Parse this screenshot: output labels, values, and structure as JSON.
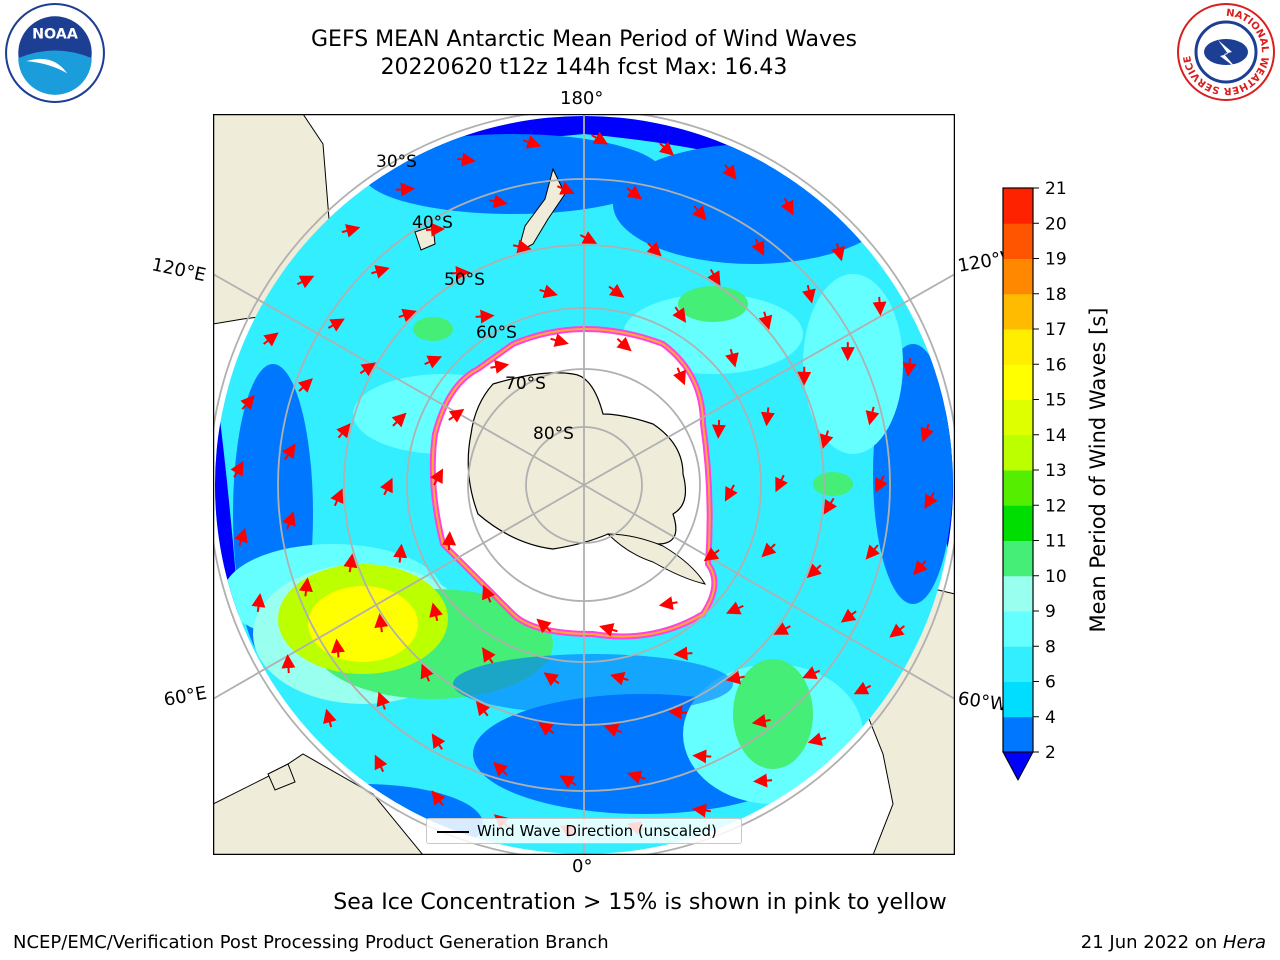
{
  "header": {
    "title_line1": "GEFS MEAN Antarctic Mean Period of Wind Waves",
    "title_line2": "20220620 t12z 144h fcst   Max: 16.43"
  },
  "logos": {
    "left": {
      "icon": "noaa-logo",
      "text": "NOAA"
    },
    "right": {
      "icon": "nws-logo",
      "text": "NATIONAL WEATHER SERVICE"
    }
  },
  "map": {
    "projection": "south-polar-stereographic",
    "longitude_labels": {
      "top": "180°",
      "bottom": "0°",
      "upper_left": "120°E",
      "upper_right": "120°W",
      "lower_left": "60°E",
      "lower_right": "60°W"
    },
    "latitude_labels": [
      "30°S",
      "40°S",
      "50°S",
      "60°S",
      "70°S",
      "80°S"
    ],
    "legend": "Wind Wave Direction (unscaled)",
    "colors": {
      "land": "#efecd9",
      "ice_free_ocean": "#ffffff",
      "sea_ice_edge": [
        "#ff44dd",
        "#ffaa33"
      ],
      "arrows": "#ff0000",
      "gridlines": "#b0b0b0"
    }
  },
  "colorbar": {
    "label": "Mean Period of Wind Waves [s]",
    "ticks": [
      "2",
      "4",
      "6",
      "8",
      "9",
      "10",
      "11",
      "12",
      "13",
      "14",
      "15",
      "16",
      "17",
      "18",
      "19",
      "20",
      "21"
    ],
    "colors": [
      "#0077ff",
      "#00ddff",
      "#33eeff",
      "#66ffff",
      "#99ffee",
      "#44ee77",
      "#00dd00",
      "#55ee00",
      "#bbff00",
      "#ddff00",
      "#ffff00",
      "#ffee00",
      "#ffbb00",
      "#ff8800",
      "#ff5500",
      "#ff2200"
    ],
    "under_color": "#0000ff"
  },
  "caption": "Sea Ice Concentration > 15% is shown in pink to yellow",
  "footer": {
    "left": "NCEP/EMC/Verification Post Processing Product Generation Branch",
    "date": "21 Jun 2022 on ",
    "host": "Hera"
  }
}
